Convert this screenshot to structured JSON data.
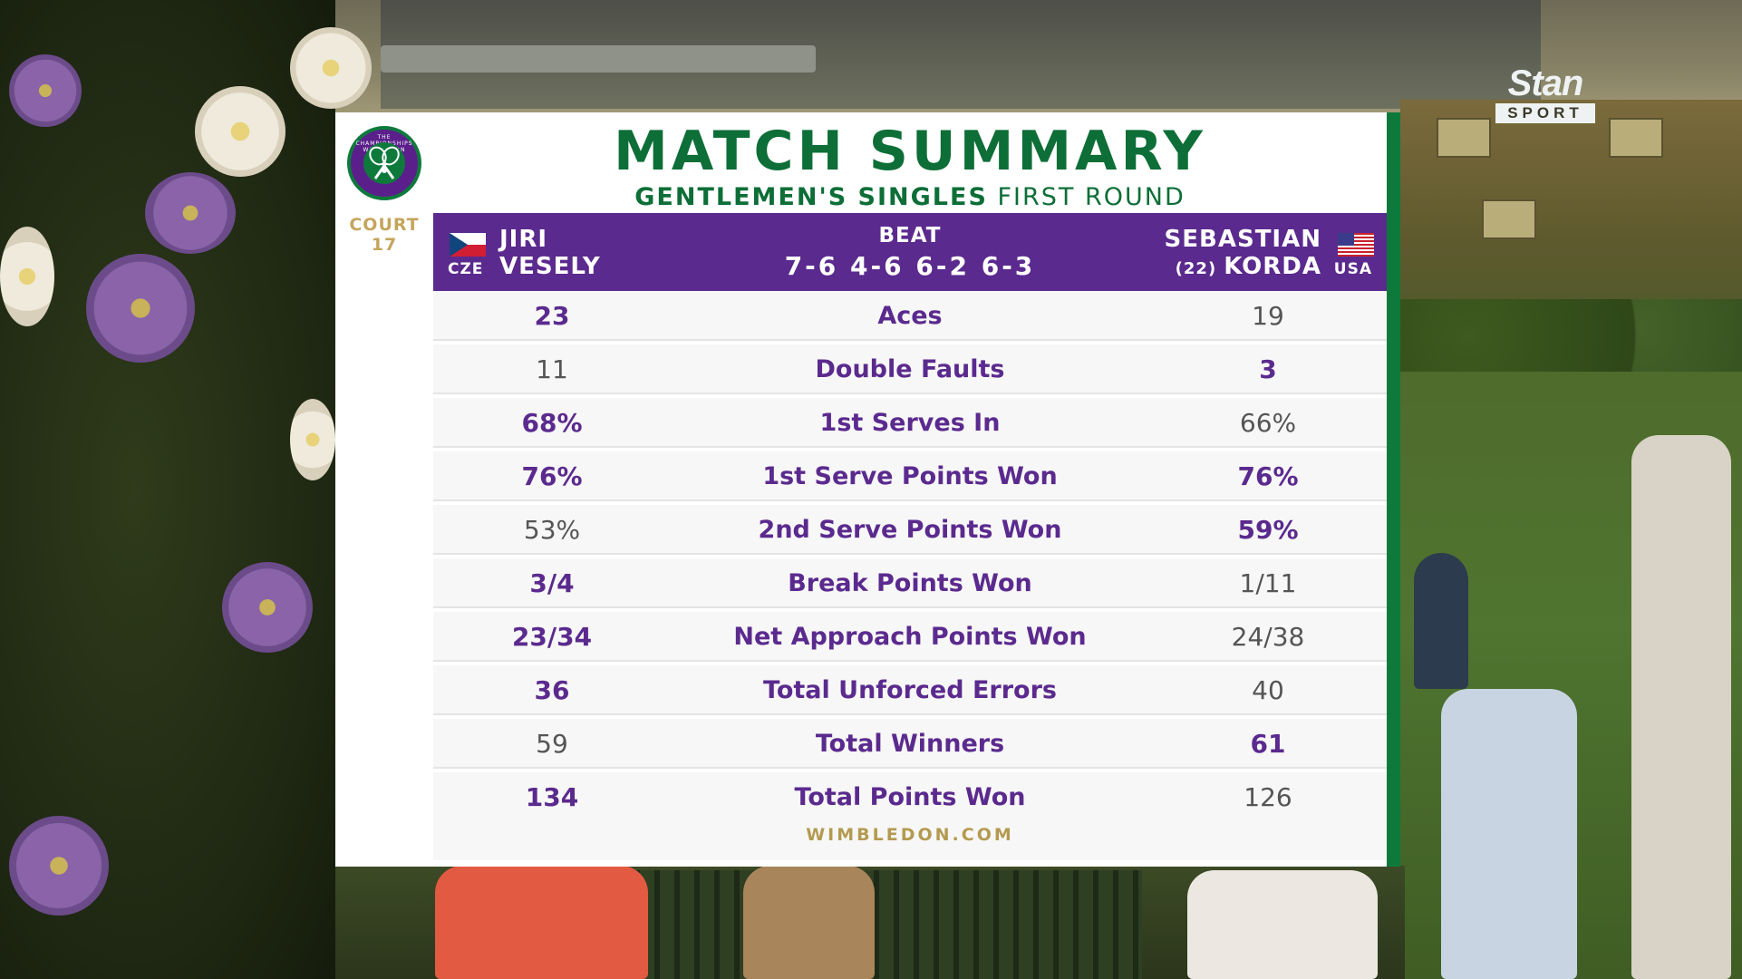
{
  "broadcaster": {
    "name": "Stan",
    "sub": "SPORT"
  },
  "event": {
    "badge_text": "THE CHAMPIONSHIPS WIMBLEDON",
    "court_label": "COURT",
    "court_number": "17"
  },
  "header": {
    "title": "MATCH SUMMARY",
    "subtitle_bold": "GENTLEMEN'S SINGLES",
    "subtitle_light": "FIRST ROUND"
  },
  "match": {
    "player1": {
      "first": "JIRI",
      "last": "VESELY",
      "country": "CZE"
    },
    "result_word": "BEAT",
    "score": "7-6 4-6 6-2 6-3",
    "player2": {
      "first": "SEBASTIAN",
      "last": "KORDA",
      "seed": "(22)",
      "country": "USA"
    }
  },
  "stats": [
    {
      "label": "Aces",
      "p1": "23",
      "p2": "19",
      "p1_lead": true,
      "p2_lead": false
    },
    {
      "label": "Double Faults",
      "p1": "11",
      "p2": "3",
      "p1_lead": false,
      "p2_lead": true
    },
    {
      "label": "1st Serves In",
      "p1": "68%",
      "p2": "66%",
      "p1_lead": true,
      "p2_lead": false
    },
    {
      "label": "1st Serve Points Won",
      "p1": "76%",
      "p2": "76%",
      "p1_lead": true,
      "p2_lead": true
    },
    {
      "label": "2nd Serve Points Won",
      "p1": "53%",
      "p2": "59%",
      "p1_lead": false,
      "p2_lead": true
    },
    {
      "label": "Break Points Won",
      "p1": "3/4",
      "p2": "1/11",
      "p1_lead": true,
      "p2_lead": false
    },
    {
      "label": "Net Approach Points Won",
      "p1": "23/34",
      "p2": "24/38",
      "p1_lead": true,
      "p2_lead": false
    },
    {
      "label": "Total Unforced Errors",
      "p1": "36",
      "p2": "40",
      "p1_lead": true,
      "p2_lead": false
    },
    {
      "label": "Total Winners",
      "p1": "59",
      "p2": "61",
      "p1_lead": false,
      "p2_lead": true
    },
    {
      "label": "Total Points Won",
      "p1": "134",
      "p2": "126",
      "p1_lead": true,
      "p2_lead": false
    }
  ],
  "footer": {
    "site": "WIMBLEDON.COM"
  },
  "colors": {
    "purple": "#5b2a8e",
    "green": "#0d6e37",
    "gold": "#b49a50"
  }
}
